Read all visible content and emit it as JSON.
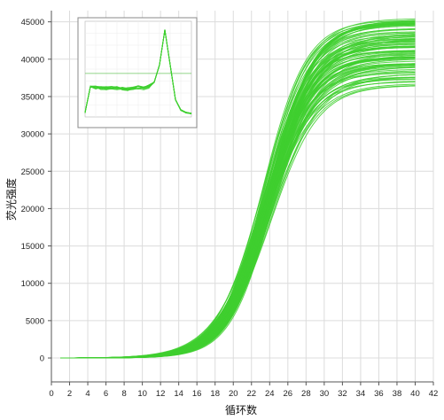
{
  "chart_data": {
    "type": "line",
    "title": "",
    "xlabel": "循环数",
    "ylabel": "荧光强度",
    "xlim": [
      0,
      42
    ],
    "ylim": [
      -3200,
      46500
    ],
    "grid": true,
    "series_color": "#3fcf2f",
    "x_ticks": [
      "0",
      "2",
      "4",
      "6",
      "8",
      "10",
      "12",
      "14",
      "16",
      "18",
      "20",
      "22",
      "24",
      "26",
      "28",
      "30",
      "32",
      "34",
      "36",
      "38",
      "40",
      "42"
    ],
    "y_ticks": [
      "0",
      "5000",
      "10000",
      "15000",
      "20000",
      "25000",
      "30000",
      "35000",
      "40000",
      "45000"
    ],
    "amplification_curves": {
      "cycles": [
        1,
        40
      ],
      "curve_count": 96,
      "baseline": 0,
      "plateau_range": [
        36500,
        45500
      ],
      "midpoint_cycle_range": [
        23.2,
        24.2
      ],
      "envelope": {
        "x": [
          1,
          14,
          16,
          18,
          20,
          22,
          24,
          26,
          28,
          30,
          32,
          34,
          36,
          38,
          40
        ],
        "y_upper": [
          0,
          80,
          700,
          2600,
          7800,
          16000,
          26000,
          34000,
          39000,
          42000,
          43700,
          44700,
          45200,
          45400,
          45500
        ],
        "y_lower": [
          0,
          40,
          400,
          1900,
          6300,
          14000,
          22000,
          28000,
          31500,
          33500,
          34900,
          35800,
          36200,
          36400,
          36500
        ]
      }
    },
    "inset": {
      "type": "line",
      "description_type": "melt-curve",
      "x": [
        0,
        5,
        10,
        15,
        20,
        25,
        30,
        35,
        40,
        45,
        50,
        55,
        60,
        65,
        70,
        75,
        80,
        85,
        90,
        95,
        100
      ],
      "y": [
        5,
        35,
        34,
        33,
        33,
        34,
        33,
        33,
        32,
        33,
        34,
        33,
        35,
        40,
        60,
        100,
        60,
        20,
        8,
        5,
        4
      ],
      "threshold": 50,
      "ylim": [
        0,
        110
      ],
      "xlim": [
        0,
        100
      ]
    }
  }
}
